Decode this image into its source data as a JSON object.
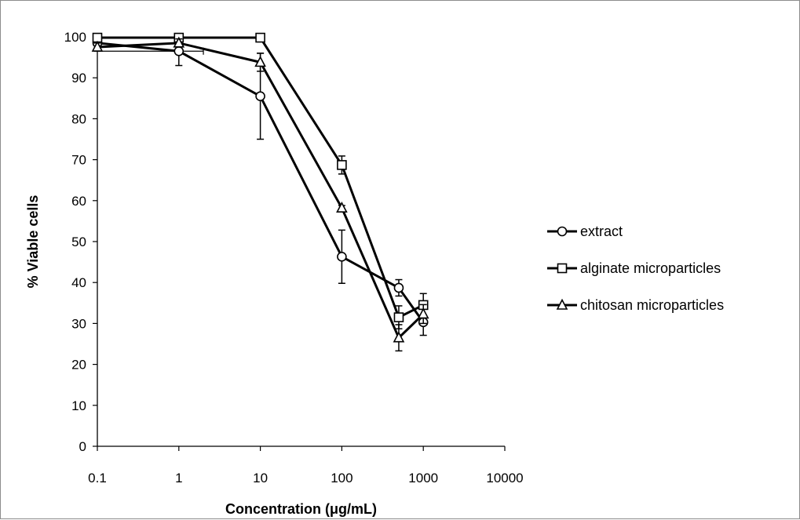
{
  "chart_data": {
    "type": "line",
    "title": "",
    "xlabel": "Concentration (μg/mL)",
    "ylabel": "% Viable cells",
    "x_scale": "log",
    "xlim": [
      0.1,
      10000
    ],
    "ylim": [
      0,
      100
    ],
    "x_ticks": [
      "0.1",
      "1",
      "10",
      "100",
      "1000",
      "10000"
    ],
    "y_ticks": [
      "0",
      "10",
      "20",
      "30",
      "40",
      "50",
      "60",
      "70",
      "80",
      "90",
      "100"
    ],
    "grid": false,
    "legend_position": "right",
    "series": [
      {
        "name": "extract",
        "marker": "circle",
        "points": [
          {
            "x": 0.1,
            "y": 98.5,
            "err": 1.5
          },
          {
            "x": 1,
            "y": 96.5,
            "err": 3.5,
            "xerr": 1
          },
          {
            "x": 10,
            "y": 85.5,
            "err": 10.5
          },
          {
            "x": 100,
            "y": 46.3,
            "err": 6.5
          },
          {
            "x": 500,
            "y": 38.7,
            "err": 2
          },
          {
            "x": 1000,
            "y": 30.3,
            "err": 3.2
          }
        ]
      },
      {
        "name": "alginate microparticles",
        "marker": "square",
        "points": [
          {
            "x": 0.1,
            "y": 99.8,
            "err": 0.3
          },
          {
            "x": 1,
            "y": 99.8,
            "err": 0.3
          },
          {
            "x": 10,
            "y": 99.8,
            "err": 0.3
          },
          {
            "x": 100,
            "y": 68.7,
            "err": 2.2
          },
          {
            "x": 500,
            "y": 31.5,
            "err": 2.8
          },
          {
            "x": 1000,
            "y": 34.5,
            "err": 2.8
          }
        ]
      },
      {
        "name": "chitosan microparticles",
        "marker": "triangle",
        "points": [
          {
            "x": 0.1,
            "y": 97.5,
            "err": 1
          },
          {
            "x": 1,
            "y": 98.5,
            "err": 1
          },
          {
            "x": 10,
            "y": 93.8,
            "err": 2.2
          },
          {
            "x": 100,
            "y": 58.2,
            "err": 0.6
          },
          {
            "x": 500,
            "y": 26.5,
            "err": 3.2
          },
          {
            "x": 1000,
            "y": 32.3,
            "err": 2.3
          }
        ]
      }
    ]
  }
}
